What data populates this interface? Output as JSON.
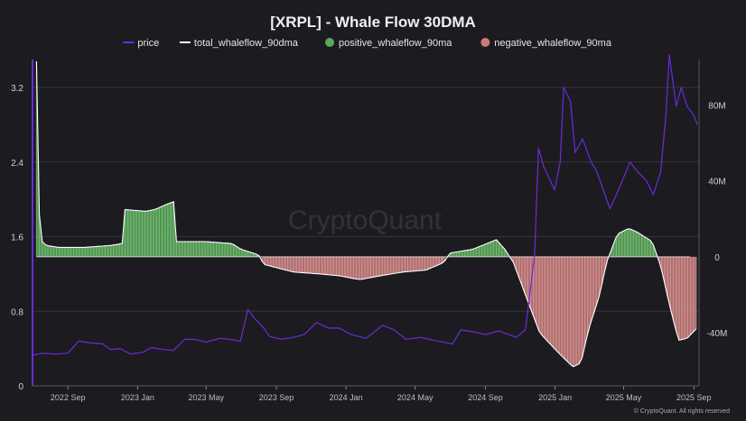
{
  "chart_data": {
    "type": "line",
    "title": "[XRPL] - Whale Flow 30DMA",
    "watermark": "CryptoQuant",
    "footer": "© CryptoQuant. All rights reserved",
    "legend": {
      "placement": "top-center",
      "items": [
        {
          "label": "price",
          "kind": "line",
          "color": "#6a2cd8"
        },
        {
          "label": "total_whaleflow_90dma",
          "kind": "line",
          "color": "#ffffff"
        },
        {
          "label": "positive_whaleflow_90ma",
          "kind": "dot",
          "color": "#5aa95a"
        },
        {
          "label": "negative_whaleflow_90ma",
          "kind": "dot",
          "color": "#c97a7a"
        }
      ]
    },
    "x_axis": {
      "start": "2022-07-01",
      "end": "2025-09-10",
      "ticks": [
        {
          "date": "2022-09-01",
          "label": "2022 Sep"
        },
        {
          "date": "2023-01-01",
          "label": "2023 Jan"
        },
        {
          "date": "2023-05-01",
          "label": "2023 May"
        },
        {
          "date": "2023-09-01",
          "label": "2023 Sep"
        },
        {
          "date": "2024-01-01",
          "label": "2024 Jan"
        },
        {
          "date": "2024-05-01",
          "label": "2024 May"
        },
        {
          "date": "2024-09-01",
          "label": "2024 Sep"
        },
        {
          "date": "2025-01-01",
          "label": "2025 Jan"
        },
        {
          "date": "2025-05-01",
          "label": "2025 May"
        },
        {
          "date": "2025-09-01",
          "label": "2025 Sep"
        }
      ]
    },
    "y_left": {
      "label": "",
      "range": [
        0,
        3.5
      ],
      "ticks": [
        {
          "v": 0,
          "label": "0"
        },
        {
          "v": 0.8,
          "label": "0.8"
        },
        {
          "v": 1.6,
          "label": "1.6"
        },
        {
          "v": 2.4,
          "label": "2.4"
        },
        {
          "v": 3.2,
          "label": "3.2"
        }
      ]
    },
    "y_right": {
      "label": "",
      "range": [
        -68000000,
        104000000
      ],
      "ticks": [
        {
          "v": -40000000,
          "label": "-40M"
        },
        {
          "v": 0,
          "label": "0"
        },
        {
          "v": 40000000,
          "label": "40M"
        },
        {
          "v": 80000000,
          "label": "80M"
        }
      ]
    },
    "grid": true,
    "colors": {
      "price": "#6a2cd8",
      "total": "#ffffff",
      "positive_fill": "#5aa95a",
      "positive_bar": "#8fd08f",
      "negative_fill": "#c97a7a",
      "negative_bar": "#e6b0b0",
      "grid": "#35343b",
      "axis_left": "#6a2cd8"
    },
    "series": [
      {
        "name": "price",
        "axis": "left",
        "points": [
          [
            "2022-07-01",
            0.33
          ],
          [
            "2022-07-20",
            0.35
          ],
          [
            "2022-08-10",
            0.34
          ],
          [
            "2022-09-01",
            0.35
          ],
          [
            "2022-09-20",
            0.48
          ],
          [
            "2022-10-10",
            0.46
          ],
          [
            "2022-11-01",
            0.45
          ],
          [
            "2022-11-15",
            0.39
          ],
          [
            "2022-12-01",
            0.4
          ],
          [
            "2022-12-20",
            0.34
          ],
          [
            "2023-01-10",
            0.36
          ],
          [
            "2023-01-25",
            0.41
          ],
          [
            "2023-02-15",
            0.39
          ],
          [
            "2023-03-05",
            0.38
          ],
          [
            "2023-03-25",
            0.5
          ],
          [
            "2023-04-10",
            0.5
          ],
          [
            "2023-05-01",
            0.47
          ],
          [
            "2023-05-25",
            0.51
          ],
          [
            "2023-06-10",
            0.5
          ],
          [
            "2023-06-30",
            0.48
          ],
          [
            "2023-07-13",
            0.82
          ],
          [
            "2023-07-25",
            0.72
          ],
          [
            "2023-08-10",
            0.62
          ],
          [
            "2023-08-20",
            0.53
          ],
          [
            "2023-09-10",
            0.5
          ],
          [
            "2023-10-01",
            0.52
          ],
          [
            "2023-10-20",
            0.55
          ],
          [
            "2023-11-10",
            0.68
          ],
          [
            "2023-12-01",
            0.62
          ],
          [
            "2023-12-20",
            0.62
          ],
          [
            "2024-01-10",
            0.55
          ],
          [
            "2024-02-05",
            0.51
          ],
          [
            "2024-03-05",
            0.65
          ],
          [
            "2024-03-25",
            0.6
          ],
          [
            "2024-04-15",
            0.5
          ],
          [
            "2024-05-10",
            0.52
          ],
          [
            "2024-06-10",
            0.48
          ],
          [
            "2024-07-05",
            0.45
          ],
          [
            "2024-07-20",
            0.6
          ],
          [
            "2024-08-10",
            0.58
          ],
          [
            "2024-09-01",
            0.55
          ],
          [
            "2024-09-25",
            0.59
          ],
          [
            "2024-10-25",
            0.52
          ],
          [
            "2024-11-10",
            0.6
          ],
          [
            "2024-11-20",
            1.1
          ],
          [
            "2024-11-26",
            1.4
          ],
          [
            "2024-12-03",
            2.55
          ],
          [
            "2024-12-12",
            2.35
          ],
          [
            "2024-12-20",
            2.25
          ],
          [
            "2024-12-31",
            2.1
          ],
          [
            "2025-01-10",
            2.4
          ],
          [
            "2025-01-16",
            3.2
          ],
          [
            "2025-01-28",
            3.05
          ],
          [
            "2025-02-05",
            2.5
          ],
          [
            "2025-02-18",
            2.65
          ],
          [
            "2025-03-05",
            2.4
          ],
          [
            "2025-03-15",
            2.3
          ],
          [
            "2025-04-07",
            1.9
          ],
          [
            "2025-04-22",
            2.1
          ],
          [
            "2025-05-12",
            2.4
          ],
          [
            "2025-05-25",
            2.3
          ],
          [
            "2025-06-10",
            2.2
          ],
          [
            "2025-06-22",
            2.05
          ],
          [
            "2025-07-05",
            2.3
          ],
          [
            "2025-07-14",
            2.9
          ],
          [
            "2025-07-20",
            3.55
          ],
          [
            "2025-08-01",
            3.0
          ],
          [
            "2025-08-10",
            3.2
          ],
          [
            "2025-08-20",
            3.0
          ],
          [
            "2025-09-01",
            2.9
          ],
          [
            "2025-09-07",
            2.8
          ]
        ]
      },
      {
        "name": "total_whaleflow_90dma",
        "axis": "right",
        "points": [
          [
            "2022-07-08",
            103000000
          ],
          [
            "2022-07-12",
            25000000
          ],
          [
            "2022-07-18",
            8000000
          ],
          [
            "2022-07-25",
            6000000
          ],
          [
            "2022-08-15",
            5000000
          ],
          [
            "2022-10-01",
            5000000
          ],
          [
            "2022-11-15",
            6000000
          ],
          [
            "2022-12-05",
            7000000
          ],
          [
            "2022-12-06",
            25000000
          ],
          [
            "2023-01-15",
            24000000
          ],
          [
            "2023-02-01",
            25000000
          ],
          [
            "2023-02-15",
            27000000
          ],
          [
            "2023-03-05",
            29000000
          ],
          [
            "2023-03-06",
            8000000
          ],
          [
            "2023-05-01",
            8000000
          ],
          [
            "2023-06-15",
            7000000
          ],
          [
            "2023-07-01",
            4000000
          ],
          [
            "2023-08-01",
            1000000
          ],
          [
            "2023-08-10",
            -4000000
          ],
          [
            "2023-10-01",
            -8000000
          ],
          [
            "2023-11-15",
            -9000000
          ],
          [
            "2023-12-20",
            -10000000
          ],
          [
            "2024-01-25",
            -12000000
          ],
          [
            "2024-03-01",
            -10000000
          ],
          [
            "2024-04-10",
            -8000000
          ],
          [
            "2024-05-20",
            -7000000
          ],
          [
            "2024-06-20",
            -3000000
          ],
          [
            "2024-07-01",
            2000000
          ],
          [
            "2024-08-10",
            4000000
          ],
          [
            "2024-09-20",
            9000000
          ],
          [
            "2024-10-05",
            4000000
          ],
          [
            "2024-10-20",
            -3000000
          ],
          [
            "2024-11-10",
            -20000000
          ],
          [
            "2024-12-05",
            -40000000
          ],
          [
            "2025-01-05",
            -50000000
          ],
          [
            "2025-02-01",
            -58000000
          ],
          [
            "2025-02-15",
            -56000000
          ],
          [
            "2025-03-01",
            -38000000
          ],
          [
            "2025-03-20",
            -20000000
          ],
          [
            "2025-04-01",
            -3000000
          ],
          [
            "2025-04-20",
            12000000
          ],
          [
            "2025-05-10",
            15000000
          ],
          [
            "2025-05-25",
            13000000
          ],
          [
            "2025-06-20",
            8000000
          ],
          [
            "2025-07-05",
            -5000000
          ],
          [
            "2025-07-20",
            -25000000
          ],
          [
            "2025-08-05",
            -44000000
          ],
          [
            "2025-08-20",
            -43000000
          ],
          [
            "2025-09-05",
            -38000000
          ]
        ]
      }
    ]
  }
}
